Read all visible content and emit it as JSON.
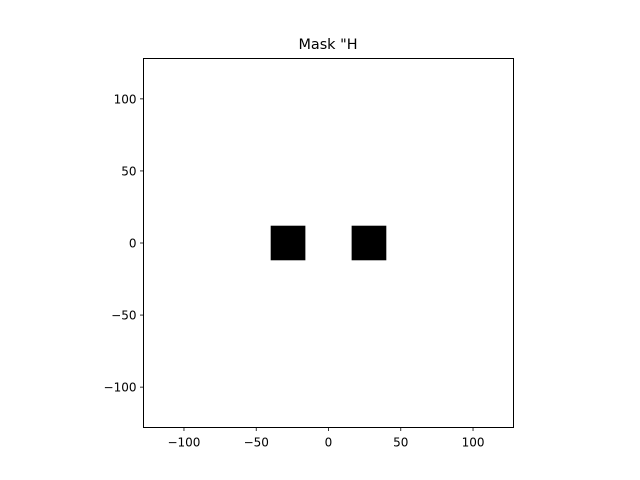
{
  "chart_data": {
    "type": "heatmap",
    "title": "Mask \"H",
    "xlabel": "",
    "ylabel": "",
    "xlim": [
      -128,
      128
    ],
    "ylim": [
      -128,
      128
    ],
    "x_ticks": [
      -100,
      -50,
      0,
      50,
      100
    ],
    "y_ticks": [
      -100,
      -50,
      0,
      50,
      100
    ],
    "x_tick_labels": [
      "−100",
      "−50",
      "0",
      "50",
      "100"
    ],
    "y_tick_labels": [
      "−100",
      "−50",
      "0",
      "50",
      "100"
    ],
    "grid": false,
    "background_color": "#ffffff",
    "mask_color": "#000000",
    "regions": [
      {
        "x0": -40,
        "x1": -16,
        "y0": -12,
        "y1": 12
      },
      {
        "x0": 16,
        "x1": 40,
        "y0": -12,
        "y1": 12
      }
    ]
  }
}
